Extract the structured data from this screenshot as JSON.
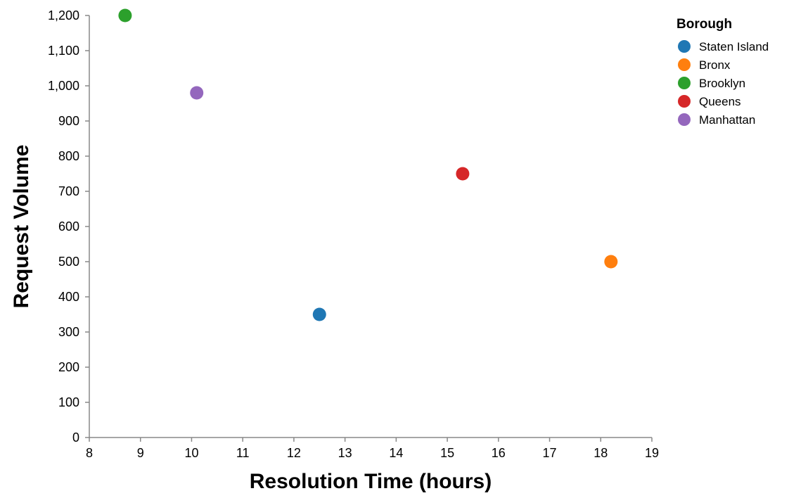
{
  "chart_data": {
    "type": "scatter",
    "xlabel": "Resolution Time (hours)",
    "ylabel": "Request Volume",
    "xlim": [
      8,
      19
    ],
    "ylim": [
      0,
      1200
    ],
    "x_ticks": [
      "8",
      "9",
      "10",
      "11",
      "12",
      "13",
      "14",
      "15",
      "16",
      "17",
      "18",
      "19"
    ],
    "y_ticks": [
      "0",
      "100",
      "200",
      "300",
      "400",
      "500",
      "600",
      "700",
      "800",
      "900",
      "1,000",
      "1,100",
      "1,200"
    ],
    "grid": false,
    "legend": {
      "title": "Borough",
      "placement": "top-right"
    },
    "series": [
      {
        "name": "Staten Island",
        "color": "#1f77b4",
        "x": 12.5,
        "y": 350
      },
      {
        "name": "Bronx",
        "color": "#ff7f0e",
        "x": 18.2,
        "y": 500
      },
      {
        "name": "Brooklyn",
        "color": "#2ca02c",
        "x": 8.7,
        "y": 1200
      },
      {
        "name": "Queens",
        "color": "#d62728",
        "x": 15.3,
        "y": 750
      },
      {
        "name": "Manhattan",
        "color": "#9467bd",
        "x": 10.1,
        "y": 980
      }
    ]
  }
}
